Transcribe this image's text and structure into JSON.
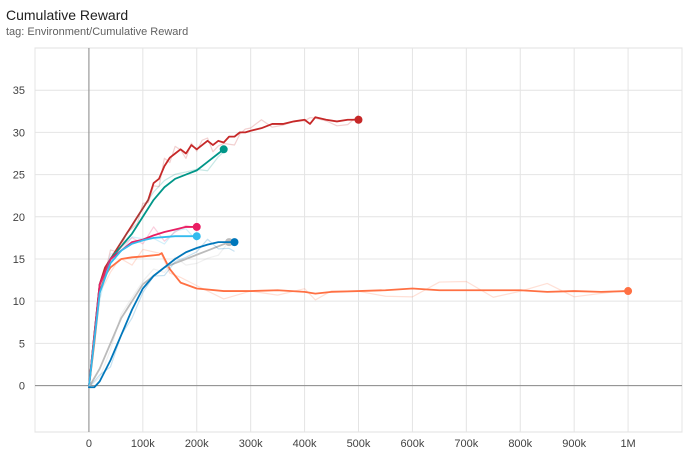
{
  "card": {
    "title": "Cumulative Reward",
    "subtitle": "tag: Environment/Cumulative Reward"
  },
  "chart_data": {
    "type": "line",
    "title": "Cumulative Reward",
    "xlabel": "",
    "ylabel": "",
    "xlim": [
      -100000,
      1100000
    ],
    "ylim": [
      -5.5,
      40
    ],
    "grid": true,
    "smoothed_with_raw_overlay": true,
    "x_ticks": [
      0,
      100000,
      200000,
      300000,
      400000,
      500000,
      600000,
      700000,
      800000,
      900000,
      1000000
    ],
    "x_tick_labels": [
      "0",
      "100k",
      "200k",
      "300k",
      "400k",
      "500k",
      "600k",
      "700k",
      "800k",
      "900k",
      "1M"
    ],
    "y_ticks": [
      0,
      5,
      10,
      15,
      20,
      25,
      30,
      35
    ],
    "y_tick_labels": [
      "0",
      "5",
      "10",
      "15",
      "20",
      "25",
      "30",
      "35"
    ],
    "series": [
      {
        "color": "#ff7043",
        "x": [
          0,
          10000,
          20000,
          30000,
          40000,
          50000,
          60000,
          80000,
          100000,
          130000,
          135000,
          150000,
          170000,
          200000,
          250000,
          300000,
          350000,
          400000,
          420000,
          450000,
          500000,
          550000,
          600000,
          650000,
          700000,
          750000,
          800000,
          850000,
          900000,
          950000,
          1000000
        ],
        "y": [
          -0.2,
          5,
          11,
          13,
          14,
          14.5,
          15,
          15.2,
          15.3,
          15.5,
          15.7,
          13.8,
          12.2,
          11.5,
          11.2,
          11.2,
          11.3,
          11.1,
          10.9,
          11.1,
          11.2,
          11.3,
          11.5,
          11.3,
          11.3,
          11.3,
          11.3,
          11.1,
          11.2,
          11.1,
          11.2
        ]
      },
      {
        "color": "#c62828",
        "x": [
          0,
          10000,
          20000,
          30000,
          40000,
          50000,
          60000,
          70000,
          80000,
          90000,
          100000,
          110000,
          120000,
          130000,
          140000,
          150000,
          160000,
          170000,
          180000,
          190000,
          200000,
          210000,
          220000,
          230000,
          240000,
          250000,
          260000,
          270000,
          280000,
          290000,
          300000,
          320000,
          340000,
          360000,
          380000,
          400000,
          410000,
          420000,
          440000,
          460000,
          480000,
          500000
        ],
        "y": [
          -0.2,
          6,
          12,
          14,
          15,
          16,
          17,
          18,
          19,
          20,
          21,
          22,
          24,
          24.5,
          26,
          27,
          27.5,
          28,
          27.5,
          28.5,
          28,
          28.5,
          29,
          28.5,
          29,
          28.8,
          29.5,
          29.5,
          30,
          30,
          30.2,
          30.5,
          31,
          31,
          31.3,
          31.5,
          31,
          31.8,
          31.5,
          31.3,
          31.5,
          31.5
        ]
      },
      {
        "color": "#009688",
        "x": [
          0,
          20000,
          40000,
          60000,
          80000,
          100000,
          120000,
          140000,
          160000,
          180000,
          200000,
          220000,
          240000,
          250000
        ],
        "y": [
          -0.2,
          12,
          15,
          16.5,
          18,
          20,
          22,
          23.5,
          24.5,
          25,
          25.5,
          26.5,
          27.5,
          28
        ]
      },
      {
        "color": "#e91e63",
        "x": [
          0,
          20000,
          40000,
          60000,
          80000,
          100000,
          120000,
          140000,
          160000,
          180000,
          200000
        ],
        "y": [
          -0.2,
          12,
          15,
          16,
          17,
          17.3,
          17.8,
          18.2,
          18.5,
          18.8,
          18.8
        ]
      },
      {
        "color": "#33bbee",
        "x": [
          0,
          20000,
          40000,
          60000,
          80000,
          100000,
          120000,
          140000,
          160000,
          180000,
          200000
        ],
        "y": [
          -0.2,
          11,
          14.5,
          16,
          16.8,
          17.2,
          17.5,
          17.6,
          17.7,
          17.7,
          17.7
        ]
      },
      {
        "color": "#bbbbbb",
        "x": [
          0,
          20000,
          40000,
          60000,
          80000,
          100000,
          120000,
          140000,
          160000,
          180000,
          200000,
          220000,
          240000,
          260000
        ],
        "y": [
          -0.2,
          2,
          5,
          8,
          10,
          12,
          13,
          14,
          14.5,
          15,
          15.5,
          16,
          16.5,
          17
        ]
      },
      {
        "color": "#0077bb",
        "x": [
          0,
          10000,
          20000,
          40000,
          60000,
          80000,
          100000,
          120000,
          140000,
          160000,
          180000,
          200000,
          220000,
          240000,
          260000,
          270000
        ],
        "y": [
          -0.2,
          -0.2,
          0.5,
          3,
          6,
          9,
          11.5,
          13,
          14,
          15,
          15.8,
          16.3,
          16.7,
          17,
          17,
          17
        ]
      }
    ]
  }
}
